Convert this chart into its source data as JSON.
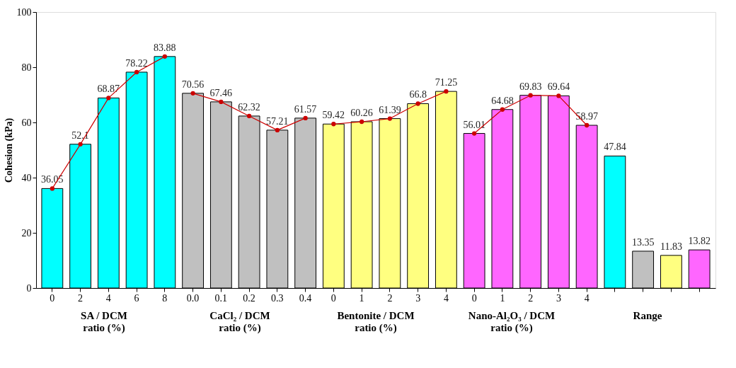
{
  "chart_data": {
    "type": "bar",
    "ylabel": "Cohesion (kPa)",
    "categories": [
      "0",
      "2",
      "4",
      "6",
      "8",
      "0.0",
      "0.1",
      "0.2",
      "0.3",
      "0.4",
      "0",
      "1",
      "2",
      "3",
      "4",
      "0",
      "1",
      "2",
      "3",
      "4",
      null,
      null,
      null,
      null
    ],
    "series": [
      {
        "values": [
          36.05,
          52.1,
          68.87,
          78.22,
          83.88,
          70.56,
          67.46,
          62.32,
          57.21,
          61.57,
          59.42,
          60.26,
          61.39,
          66.8,
          71.25,
          56.01,
          64.68,
          69.83,
          69.64,
          58.97,
          47.84,
          13.35,
          11.83,
          13.82
        ],
        "value_labels": [
          "36.05",
          "52.1",
          "68.87",
          "78.22",
          "83.88",
          "70.56",
          "67.46",
          "62.32",
          "57.21",
          "61.57",
          "59.42",
          "60.26",
          "61.39",
          "66.8",
          "71.25",
          "56.01",
          "64.68",
          "69.83",
          "69.64",
          "58.97",
          "47.84",
          "13.35",
          "11.83",
          "13.82"
        ],
        "colors": [
          "#00ffff",
          "#00ffff",
          "#00ffff",
          "#00ffff",
          "#00ffff",
          "#c0c0c0",
          "#c0c0c0",
          "#c0c0c0",
          "#c0c0c0",
          "#c0c0c0",
          "#ffff80",
          "#ffff80",
          "#ffff80",
          "#ffff80",
          "#ffff80",
          "#ff66ff",
          "#ff66ff",
          "#ff66ff",
          "#ff66ff",
          "#ff66ff",
          "#00ffff",
          "#c0c0c0",
          "#ffff80",
          "#ff66ff"
        ]
      },
      {
        "type": "line",
        "color": "#cc0000",
        "values": [
          36.05,
          52.1,
          68.87,
          78.22,
          83.88,
          null,
          null,
          null,
          null,
          null,
          null,
          null,
          null,
          null,
          null,
          null,
          null,
          null,
          null,
          null,
          null,
          null,
          null,
          null
        ]
      },
      {
        "type": "line",
        "color": "#cc0000",
        "values": [
          null,
          null,
          null,
          null,
          null,
          70.56,
          67.46,
          62.32,
          57.21,
          61.57,
          null,
          null,
          null,
          null,
          null,
          null,
          null,
          null,
          null,
          null,
          null,
          null,
          null,
          null
        ]
      },
      {
        "type": "line",
        "color": "#cc0000",
        "values": [
          null,
          null,
          null,
          null,
          null,
          null,
          null,
          null,
          null,
          null,
          59.42,
          60.26,
          61.39,
          66.8,
          71.25,
          null,
          null,
          null,
          null,
          null,
          null,
          null,
          null,
          null
        ]
      },
      {
        "type": "line",
        "color": "#cc0000",
        "values": [
          null,
          null,
          null,
          null,
          null,
          null,
          null,
          null,
          null,
          null,
          null,
          null,
          null,
          null,
          null,
          56.01,
          64.68,
          69.83,
          69.64,
          58.97,
          null,
          null,
          null,
          null
        ]
      }
    ],
    "ylim": [
      0,
      100
    ],
    "yticks": [
      0,
      20,
      40,
      60,
      80,
      100
    ],
    "grid": false,
    "marker": "circle",
    "line_style": "solid",
    "annotations": [
      "SA / DCM\nratio (%)",
      "CaCl₂ / DCM\nratio  (%)",
      "Bentonite / DCM\nratio (%)",
      "Nano-Al₂O₃ / DCM\nratio (%)",
      "Range"
    ]
  }
}
